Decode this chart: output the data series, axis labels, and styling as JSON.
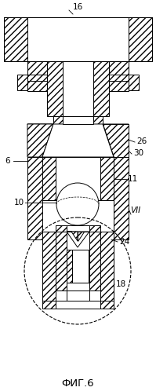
{
  "title": "ФИГ.6",
  "bg_color": "#ffffff",
  "line_color": "#000000",
  "fig_width": 1.99,
  "fig_height": 4.98,
  "dpi": 100
}
